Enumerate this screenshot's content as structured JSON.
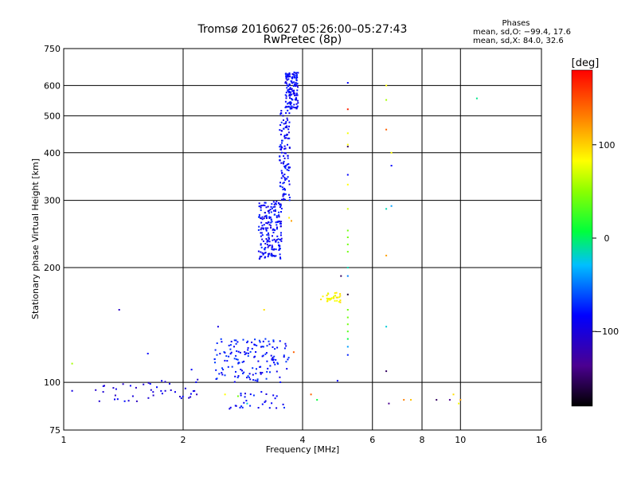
{
  "title": "Tromsø 20160627 05:26:00–05:27:43",
  "subtitle": "RwPretec (8p)",
  "phases_info": {
    "heading": "Phases",
    "line1": "mean, sd,O: −99.4, 17.6",
    "line2": "mean, sd,X:  84.0, 32.6"
  },
  "colorbar": {
    "unit": "[deg]",
    "ticks": [
      {
        "value": 100,
        "label": "100"
      },
      {
        "value": 0,
        "label": "0"
      },
      {
        "value": -100,
        "label": "−100"
      }
    ],
    "min": -180,
    "max": 180
  },
  "chart_data": {
    "type": "scatter",
    "title": "Tromsø 20160627 05:26:00–05:27:43",
    "subtitle": "RwPretec (8p)",
    "xlabel": "Frequency [MHz]",
    "ylabel": "Stationary phase Virtual Height [km]",
    "xscale": "log",
    "yscale": "log",
    "xlim": [
      1,
      16
    ],
    "ylim": [
      75,
      750
    ],
    "x_ticks": [
      {
        "value": 1,
        "label": "1"
      },
      {
        "value": 2,
        "label": "2"
      },
      {
        "value": 4,
        "label": "4"
      },
      {
        "value": 6,
        "label": "6"
      },
      {
        "value": 8,
        "label": "8"
      },
      {
        "value": 10,
        "label": "10"
      },
      {
        "value": 16,
        "label": "16"
      }
    ],
    "y_ticks": [
      {
        "value": 75,
        "label": "75"
      },
      {
        "value": 100,
        "label": "100"
      },
      {
        "value": 200,
        "label": "200"
      },
      {
        "value": 300,
        "label": "300"
      },
      {
        "value": 400,
        "label": "400"
      },
      {
        "value": 500,
        "label": "500"
      },
      {
        "value": 600,
        "label": "600"
      },
      {
        "value": 750,
        "label": "750"
      }
    ],
    "x_grid": [
      2,
      4,
      6,
      8,
      10
    ],
    "y_grid": [
      100,
      200,
      300,
      400,
      500,
      600
    ],
    "color_variable": "phase [deg]",
    "clusters": [
      {
        "desc": "F-region trace lower",
        "fmin": 3.1,
        "fmax": 3.55,
        "hmin": 210,
        "hmax": 300,
        "phase": -110,
        "n": 200
      },
      {
        "desc": "F-region trace upper",
        "fmin": 3.5,
        "fmax": 3.72,
        "hmin": 300,
        "hmax": 520,
        "phase": -110,
        "n": 120
      },
      {
        "desc": "F-region top",
        "fmin": 3.62,
        "fmax": 3.9,
        "hmin": 520,
        "hmax": 650,
        "phase": -110,
        "n": 140
      },
      {
        "desc": "E-region trace",
        "fmin": 2.4,
        "fmax": 3.7,
        "hmin": 100,
        "hmax": 130,
        "phase": -105,
        "n": 150
      },
      {
        "desc": "low-height scatter",
        "fmin": 1.2,
        "fmax": 2.2,
        "hmin": 89,
        "hmax": 102,
        "phase": -120,
        "n": 45
      },
      {
        "desc": "mid scatter",
        "fmin": 2.6,
        "fmax": 3.6,
        "hmin": 85,
        "hmax": 95,
        "phase": -110,
        "n": 30
      },
      {
        "desc": "yellow patch",
        "fmin": 4.6,
        "fmax": 5.0,
        "hmin": 162,
        "hmax": 172,
        "phase": 100,
        "n": 30
      }
    ],
    "points": [
      {
        "x": 5.2,
        "y": 610,
        "phase": -110
      },
      {
        "x": 5.2,
        "y": 520,
        "phase": 170
      },
      {
        "x": 5.2,
        "y": 450,
        "phase": 95
      },
      {
        "x": 5.2,
        "y": 420,
        "phase": 100
      },
      {
        "x": 5.2,
        "y": 415,
        "phase": -160
      },
      {
        "x": 5.2,
        "y": 350,
        "phase": -110
      },
      {
        "x": 5.2,
        "y": 330,
        "phase": 100
      },
      {
        "x": 5.2,
        "y": 285,
        "phase": 80
      },
      {
        "x": 5.2,
        "y": 250,
        "phase": 40
      },
      {
        "x": 5.2,
        "y": 240,
        "phase": 40
      },
      {
        "x": 5.2,
        "y": 230,
        "phase": 40
      },
      {
        "x": 5.2,
        "y": 220,
        "phase": 40
      },
      {
        "x": 5.2,
        "y": 200,
        "phase": -30
      },
      {
        "x": 5.2,
        "y": 190,
        "phase": -70
      },
      {
        "x": 5.2,
        "y": 170,
        "phase": -170
      },
      {
        "x": 5.2,
        "y": 155,
        "phase": 40
      },
      {
        "x": 5.2,
        "y": 148,
        "phase": 40
      },
      {
        "x": 5.2,
        "y": 142,
        "phase": 40
      },
      {
        "x": 5.2,
        "y": 136,
        "phase": 30
      },
      {
        "x": 5.2,
        "y": 130,
        "phase": 0
      },
      {
        "x": 5.2,
        "y": 124,
        "phase": -60
      },
      {
        "x": 5.2,
        "y": 118,
        "phase": -100
      },
      {
        "x": 5.0,
        "y": 190,
        "phase": -160
      },
      {
        "x": 4.5,
        "y": 168,
        "phase": 100
      },
      {
        "x": 4.45,
        "y": 165,
        "phase": 110
      },
      {
        "x": 3.7,
        "y": 270,
        "phase": 105
      },
      {
        "x": 3.75,
        "y": 265,
        "phase": 130
      },
      {
        "x": 3.8,
        "y": 120,
        "phase": 150
      },
      {
        "x": 3.2,
        "y": 155,
        "phase": 110
      },
      {
        "x": 4.2,
        "y": 93,
        "phase": 150
      },
      {
        "x": 4.35,
        "y": 90,
        "phase": 0
      },
      {
        "x": 4.9,
        "y": 101,
        "phase": -110
      },
      {
        "x": 6.5,
        "y": 600,
        "phase": 100
      },
      {
        "x": 6.5,
        "y": 550,
        "phase": 60
      },
      {
        "x": 6.5,
        "y": 460,
        "phase": 150
      },
      {
        "x": 6.7,
        "y": 400,
        "phase": 100
      },
      {
        "x": 6.7,
        "y": 370,
        "phase": -110
      },
      {
        "x": 6.7,
        "y": 290,
        "phase": -60
      },
      {
        "x": 6.5,
        "y": 285,
        "phase": -30
      },
      {
        "x": 6.5,
        "y": 215,
        "phase": 130
      },
      {
        "x": 6.5,
        "y": 140,
        "phase": -40
      },
      {
        "x": 6.5,
        "y": 107,
        "phase": -160
      },
      {
        "x": 6.6,
        "y": 88,
        "phase": -150
      },
      {
        "x": 7.2,
        "y": 90,
        "phase": 140
      },
      {
        "x": 7.5,
        "y": 90,
        "phase": 120
      },
      {
        "x": 8.7,
        "y": 90,
        "phase": -160
      },
      {
        "x": 9.4,
        "y": 90,
        "phase": -150
      },
      {
        "x": 9.6,
        "y": 93,
        "phase": 110
      },
      {
        "x": 10.0,
        "y": 90,
        "phase": 130
      },
      {
        "x": 9.9,
        "y": 88,
        "phase": 100
      },
      {
        "x": 11.0,
        "y": 555,
        "phase": -20
      },
      {
        "x": 1.05,
        "y": 112,
        "phase": 60
      },
      {
        "x": 1.05,
        "y": 95,
        "phase": -120
      },
      {
        "x": 1.38,
        "y": 155,
        "phase": -130
      },
      {
        "x": 1.63,
        "y": 119,
        "phase": -110
      },
      {
        "x": 2.45,
        "y": 140,
        "phase": -120
      },
      {
        "x": 2.1,
        "y": 108,
        "phase": -110
      },
      {
        "x": 2.55,
        "y": 93,
        "phase": 100
      },
      {
        "x": 2.75,
        "y": 92,
        "phase": 40
      },
      {
        "x": 2.9,
        "y": 88,
        "phase": -40
      }
    ]
  }
}
